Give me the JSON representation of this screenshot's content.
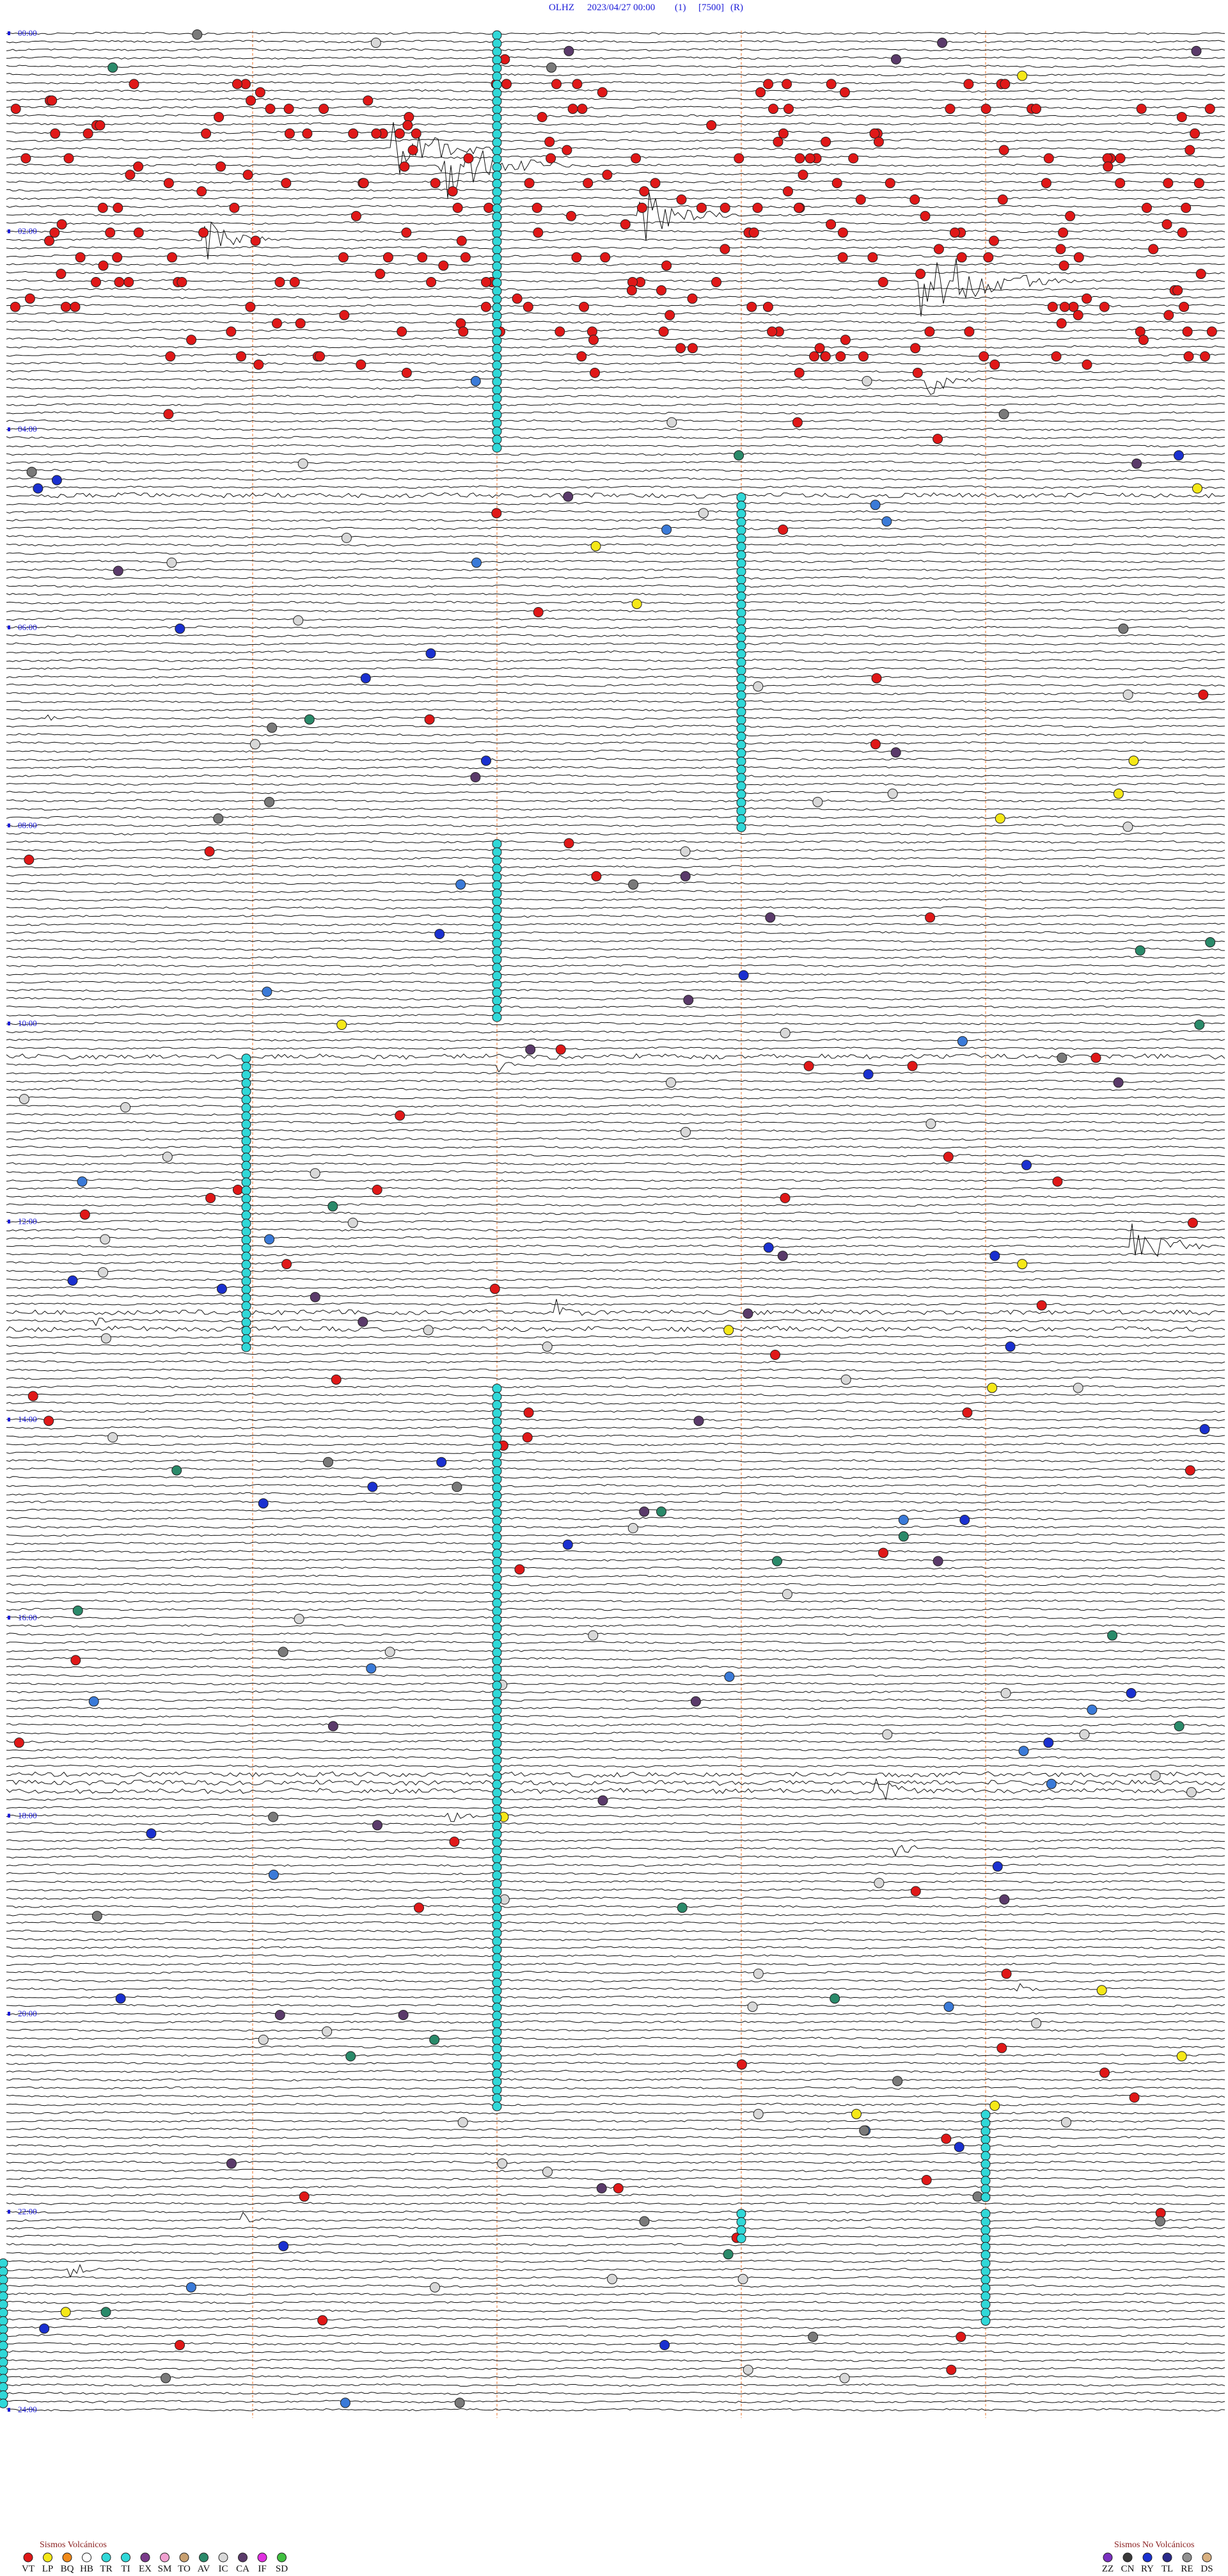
{
  "header": {
    "station": "OLHZ",
    "datetime": "2023/04/27 00:00",
    "channel": "(1)",
    "scale": "[7500]",
    "mode": "(R)"
  },
  "time_labels": [
    "00:00",
    "02:00",
    "04:00",
    "06:00",
    "08:00",
    "10:00",
    "12:00",
    "14:00",
    "16:00",
    "18:00",
    "20:00",
    "22:00",
    "24:00"
  ],
  "legend": {
    "volcanic": {
      "title": "Sismos Volcánicos",
      "codes": [
        "VT",
        "LP",
        "BQ",
        "HB",
        "TR",
        "TI",
        "EX",
        "SM",
        "TO",
        "AV",
        "IC",
        "CA",
        "IF",
        "SD"
      ]
    },
    "non_volcanic": {
      "title": "Sismos No Volcánicos",
      "codes": [
        "ZZ",
        "CN",
        "RY",
        "TL",
        "RE",
        "DS"
      ]
    }
  }
}
